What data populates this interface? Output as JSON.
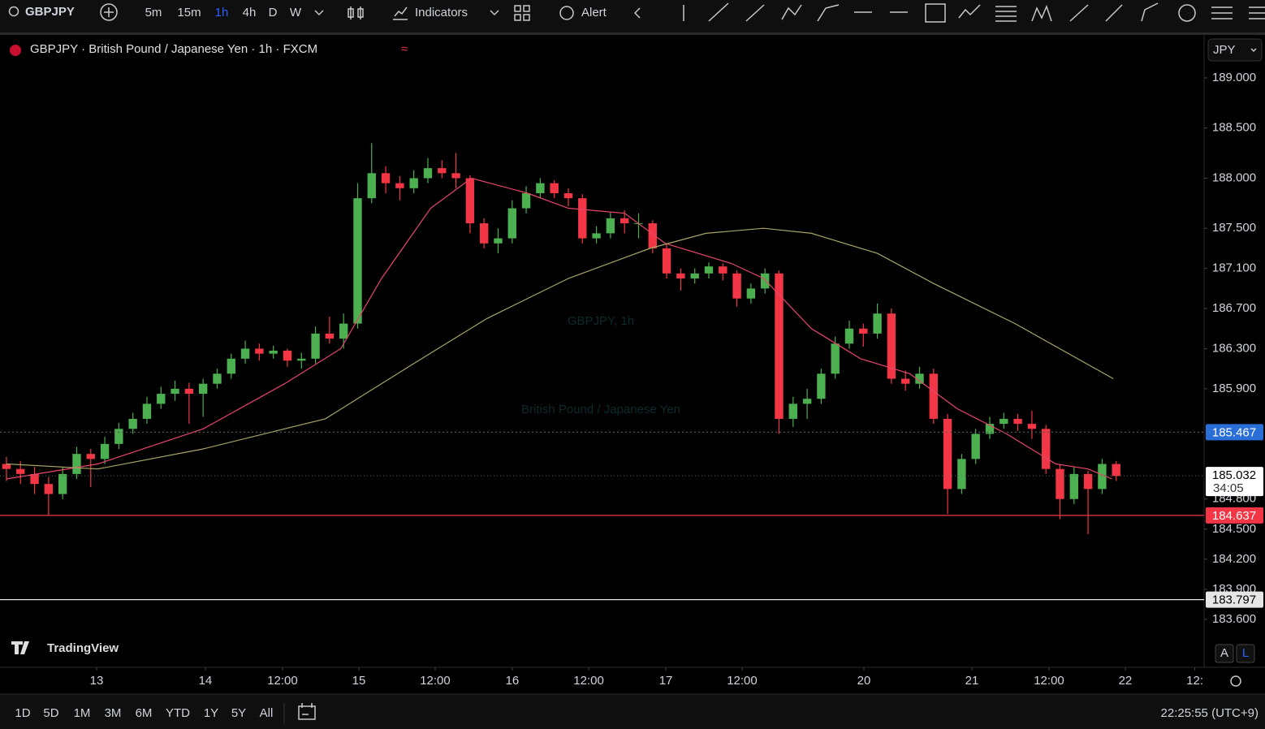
{
  "toolbar": {
    "symbol": "GBPJPY",
    "intervals": [
      "5m",
      "15m",
      "1h",
      "4h",
      "D",
      "W"
    ],
    "indicators": "Indicators",
    "alert": "Alert"
  },
  "legend": {
    "title": "GBPJPY · British Pound / Japanese Yen · 1h · FXCM"
  },
  "watermark": {
    "line1": "GBPJPY, 1h",
    "line2": "British Pound / Japanese Yen"
  },
  "logo": "TradingView",
  "scale_buttons": [
    "A",
    "L"
  ],
  "ranges": [
    "1D",
    "5D",
    "1M",
    "3M",
    "6M",
    "YTD",
    "1Y",
    "5Y",
    "All"
  ],
  "clock": "22:25:55 (UTC+9)",
  "chart_data": {
    "type": "candlestick",
    "currency": "JPY",
    "ylim": [
      183.122,
      189.437
    ],
    "yticks": [
      {
        "value": 189,
        "label": "189.000"
      },
      {
        "value": 188.5,
        "label": "188.500"
      },
      {
        "value": 188,
        "label": "188.000"
      },
      {
        "value": 187.5,
        "label": "187.500"
      },
      {
        "value": 187.1,
        "label": "187.100"
      },
      {
        "value": 186.7,
        "label": "186.700"
      },
      {
        "value": 186.3,
        "label": "186.300"
      },
      {
        "value": 185.9,
        "label": "185.900"
      },
      {
        "value": 184.8,
        "label": "184.800"
      },
      {
        "value": 184.5,
        "label": "184.500"
      },
      {
        "value": 184.2,
        "label": "184.200"
      },
      {
        "value": 183.9,
        "label": "183.900"
      },
      {
        "value": 183.6,
        "label": "183.600"
      }
    ],
    "xlim": [
      -0.46,
      85.26
    ],
    "xticks": [
      {
        "value": 6.42,
        "label": "13"
      },
      {
        "value": 14.16,
        "label": "14"
      },
      {
        "value": 19.65,
        "label": "12:00"
      },
      {
        "value": 25.09,
        "label": "15"
      },
      {
        "value": 30.52,
        "label": "12:00"
      },
      {
        "value": 36.01,
        "label": "16"
      },
      {
        "value": 41.45,
        "label": "12:00"
      },
      {
        "value": 46.94,
        "label": "17"
      },
      {
        "value": 52.37,
        "label": "12:00"
      },
      {
        "value": 61.04,
        "label": "20"
      },
      {
        "value": 68.73,
        "label": "21"
      },
      {
        "value": 74.22,
        "label": "12:00"
      },
      {
        "value": 79.65,
        "label": "22"
      },
      {
        "value": 84.6,
        "label": "12:"
      }
    ],
    "up_color": "#4caf50",
    "down_color": "#f23645",
    "candles": [
      [
        185.15,
        185.22,
        184.98,
        185.1
      ],
      [
        185.1,
        185.18,
        184.95,
        185.05
      ],
      [
        185.05,
        185.12,
        184.85,
        184.95
      ],
      [
        184.95,
        185.02,
        184.64,
        184.85
      ],
      [
        184.85,
        185.12,
        184.8,
        185.05
      ],
      [
        185.05,
        185.32,
        185.0,
        185.25
      ],
      [
        185.25,
        185.3,
        184.92,
        185.2
      ],
      [
        185.2,
        185.42,
        185.15,
        185.35
      ],
      [
        185.35,
        185.56,
        185.3,
        185.5
      ],
      [
        185.5,
        185.66,
        185.45,
        185.6
      ],
      [
        185.6,
        185.82,
        185.55,
        185.75
      ],
      [
        185.75,
        185.92,
        185.7,
        185.85
      ],
      [
        185.85,
        185.98,
        185.78,
        185.9
      ],
      [
        185.9,
        185.96,
        185.55,
        185.85
      ],
      [
        185.85,
        186.0,
        185.62,
        185.95
      ],
      [
        185.95,
        186.1,
        185.9,
        186.05
      ],
      [
        186.05,
        186.25,
        186.0,
        186.2
      ],
      [
        186.2,
        186.38,
        186.15,
        186.3
      ],
      [
        186.3,
        186.35,
        186.18,
        186.25
      ],
      [
        186.25,
        186.33,
        186.2,
        186.28
      ],
      [
        186.28,
        186.3,
        186.12,
        186.18
      ],
      [
        186.18,
        186.26,
        186.1,
        186.2
      ],
      [
        186.2,
        186.52,
        186.15,
        186.45
      ],
      [
        186.45,
        186.62,
        186.35,
        186.4
      ],
      [
        186.4,
        186.65,
        186.3,
        186.55
      ],
      [
        186.55,
        187.95,
        186.5,
        187.8
      ],
      [
        187.8,
        188.35,
        187.75,
        188.05
      ],
      [
        188.05,
        188.12,
        187.85,
        187.95
      ],
      [
        187.95,
        188.02,
        187.78,
        187.9
      ],
      [
        187.9,
        188.08,
        187.85,
        188.0
      ],
      [
        188.0,
        188.2,
        187.95,
        188.1
      ],
      [
        188.1,
        188.18,
        188.0,
        188.05
      ],
      [
        188.05,
        188.25,
        187.9,
        188.0
      ],
      [
        188.0,
        188.03,
        187.45,
        187.55
      ],
      [
        187.55,
        187.6,
        187.3,
        187.35
      ],
      [
        187.35,
        187.5,
        187.25,
        187.4
      ],
      [
        187.4,
        187.78,
        187.35,
        187.7
      ],
      [
        187.7,
        187.92,
        187.65,
        187.85
      ],
      [
        187.85,
        188.0,
        187.8,
        187.95
      ],
      [
        187.95,
        187.98,
        187.8,
        187.85
      ],
      [
        187.85,
        187.9,
        187.72,
        187.8
      ],
      [
        187.8,
        187.84,
        187.35,
        187.4
      ],
      [
        187.4,
        187.52,
        187.35,
        187.45
      ],
      [
        187.45,
        187.66,
        187.4,
        187.6
      ],
      [
        187.6,
        187.68,
        187.45,
        187.55
      ],
      [
        187.55,
        187.65,
        187.4,
        187.55
      ],
      [
        187.55,
        187.58,
        187.25,
        187.3
      ],
      [
        187.3,
        187.34,
        187.0,
        187.05
      ],
      [
        187.05,
        187.1,
        186.88,
        187.0
      ],
      [
        187.0,
        187.1,
        186.95,
        187.05
      ],
      [
        187.05,
        187.16,
        187.0,
        187.12
      ],
      [
        187.12,
        187.15,
        186.98,
        187.05
      ],
      [
        187.05,
        187.08,
        186.72,
        186.8
      ],
      [
        186.8,
        186.95,
        186.75,
        186.9
      ],
      [
        186.9,
        187.1,
        186.85,
        187.05
      ],
      [
        187.05,
        187.08,
        185.45,
        185.6
      ],
      [
        185.6,
        185.82,
        185.52,
        185.75
      ],
      [
        185.75,
        185.9,
        185.6,
        185.8
      ],
      [
        185.8,
        186.1,
        185.75,
        186.05
      ],
      [
        186.05,
        186.42,
        186.0,
        186.35
      ],
      [
        186.35,
        186.58,
        186.3,
        186.5
      ],
      [
        186.5,
        186.55,
        186.32,
        186.45
      ],
      [
        186.45,
        186.75,
        186.4,
        186.65
      ],
      [
        186.65,
        186.7,
        185.95,
        186.0
      ],
      [
        186.0,
        186.08,
        185.88,
        185.95
      ],
      [
        185.95,
        186.12,
        185.9,
        186.05
      ],
      [
        186.05,
        186.1,
        185.55,
        185.6
      ],
      [
        185.6,
        185.65,
        184.65,
        184.9
      ],
      [
        184.9,
        185.25,
        184.85,
        185.2
      ],
      [
        185.2,
        185.5,
        185.15,
        185.45
      ],
      [
        185.45,
        185.62,
        185.4,
        185.55
      ],
      [
        185.55,
        185.66,
        185.5,
        185.6
      ],
      [
        185.6,
        185.65,
        185.48,
        185.55
      ],
      [
        185.55,
        185.68,
        185.4,
        185.5
      ],
      [
        185.5,
        185.54,
        185.05,
        185.1
      ],
      [
        185.1,
        185.15,
        184.6,
        184.8
      ],
      [
        184.8,
        185.12,
        184.75,
        185.05
      ],
      [
        185.05,
        185.08,
        184.45,
        184.9
      ],
      [
        184.9,
        185.2,
        184.85,
        185.15
      ],
      [
        185.15,
        185.18,
        184.98,
        185.03
      ]
    ],
    "ma_fast": {
      "color": "#e8456a",
      "x": [
        0,
        6.5,
        14,
        19.8,
        23.8,
        26.7,
        30.2,
        33.1,
        37.1,
        40,
        44,
        46.9,
        51.6,
        53.9,
        57.3,
        60.8,
        64.3,
        67.7,
        71.2,
        74.7,
        77,
        78.7
      ],
      "values": [
        185.0,
        185.15,
        185.5,
        185.95,
        186.3,
        187.0,
        187.7,
        188.0,
        187.85,
        187.7,
        187.65,
        187.35,
        187.15,
        187.0,
        186.5,
        186.2,
        186.05,
        185.7,
        185.45,
        185.15,
        185.1,
        185.0
      ]
    },
    "ma_slow": {
      "color": "#a8a566",
      "x": [
        0,
        6.5,
        14,
        22.7,
        28.4,
        34.2,
        40,
        45.8,
        49.8,
        53.9,
        57.3,
        62,
        66,
        71.8,
        78.8
      ],
      "values": [
        185.15,
        185.1,
        185.3,
        185.6,
        186.1,
        186.6,
        187.0,
        187.3,
        187.45,
        187.5,
        187.45,
        187.25,
        186.95,
        186.55,
        186.0
      ]
    },
    "price_lines": [
      {
        "value": 185.467,
        "color": "#2a6fd8",
        "text_color": "#ffffff",
        "style": "dotted"
      },
      {
        "value": 184.637,
        "color": "#f23645",
        "text_color": "#ffffff",
        "style": "solid"
      },
      {
        "value": 183.797,
        "color": "#e6e6e6",
        "text_color": "#000000",
        "style": "solid"
      }
    ],
    "last_price": {
      "value": 185.032,
      "countdown": "34:05"
    }
  }
}
